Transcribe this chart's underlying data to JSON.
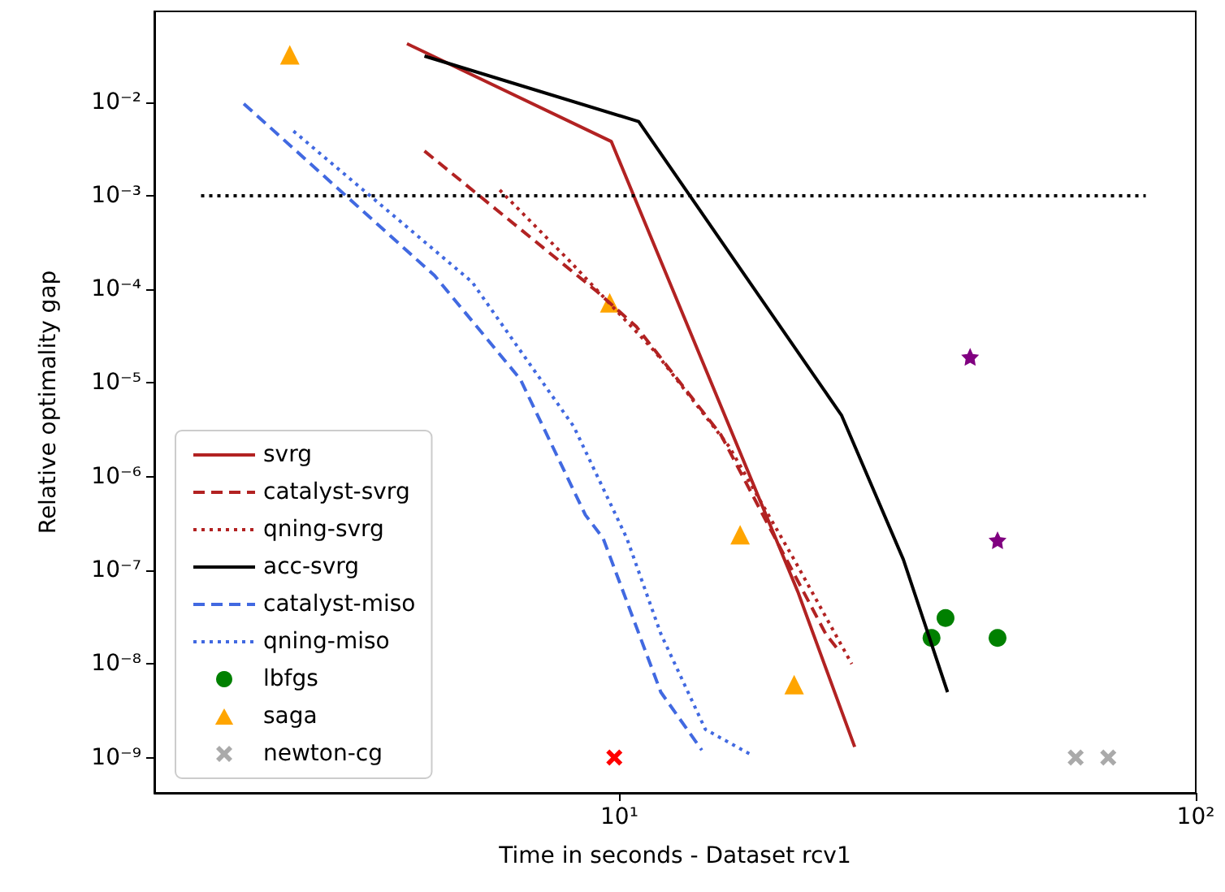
{
  "chart_data": {
    "type": "line",
    "xlabel": "Time in seconds - Dataset rcv1",
    "ylabel": "Relative optimality gap",
    "log": "xy",
    "grid": false,
    "legend": "bottom left",
    "xlim": [
      1.56,
      100
    ],
    "xticks": [
      {
        "value": 10,
        "label": "10¹"
      },
      {
        "value": 100,
        "label": "10²"
      }
    ],
    "ylim": [
      4.2e-10,
      0.093
    ],
    "yticks": [
      {
        "value": 1e-09,
        "label": "10⁻⁹"
      },
      {
        "value": 1e-08,
        "label": "10⁻⁸"
      },
      {
        "value": 1e-07,
        "label": "10⁻⁷"
      },
      {
        "value": 1e-06,
        "label": "10⁻⁶"
      },
      {
        "value": 1e-05,
        "label": "10⁻⁵"
      },
      {
        "value": 0.0001,
        "label": "10⁻⁴"
      },
      {
        "value": 0.001,
        "label": "10⁻³"
      },
      {
        "value": 0.01,
        "label": "10⁻²"
      }
    ],
    "series": [
      {
        "name": "svrg",
        "color": "#b22222",
        "line_style": "solid",
        "x": [
          4.28,
          9.68,
          20.4,
          25.6
        ],
        "values": [
          0.042,
          0.0038,
          5.9e-08,
          1.3e-09
        ]
      },
      {
        "name": "catalyst-svrg",
        "color": "#b22222",
        "line_style": "dashed",
        "x": [
          4.59,
          9.14,
          10.7,
          15.0,
          18.0,
          22.8,
          24.0
        ],
        "values": [
          0.003,
          9.5e-05,
          4e-05,
          2.8e-06,
          3.3e-07,
          2.1e-08,
          1.4e-08
        ]
      },
      {
        "name": "qning-svrg",
        "color": "#b22222",
        "line_style": "dotted",
        "x": [
          6.2,
          8.2,
          11.5,
          15.5,
          20.1,
          25.3
        ],
        "values": [
          0.00115,
          0.0002,
          2.2e-05,
          2.1e-06,
          1.3e-07,
          1e-08
        ]
      },
      {
        "name": "acc-svrg",
        "color": "#000000",
        "line_style": "solid",
        "x": [
          4.59,
          10.8,
          24.3,
          31.1,
          37.1
        ],
        "values": [
          0.031,
          0.0062,
          4.5e-06,
          1.3e-07,
          5e-09
        ]
      },
      {
        "name": "catalyst-miso",
        "color": "#4169e1",
        "line_style": "dashed",
        "x": [
          2.23,
          4.78,
          6.73,
          8.73,
          9.37,
          11.8,
          13.9
        ],
        "values": [
          0.0096,
          0.00014,
          1.1e-05,
          3.9e-07,
          2.2e-07,
          5e-09,
          1.2e-09
        ]
      },
      {
        "name": "qning-miso",
        "color": "#4169e1",
        "line_style": "dotted",
        "x": [
          2.72,
          5.55,
          8.34,
          10.3,
          11.8,
          14.1,
          16.8
        ],
        "values": [
          0.0049,
          0.00012,
          3.4e-06,
          2.2e-07,
          2.1e-08,
          2e-09,
          1.1e-09
        ]
      },
      {
        "name": "lbfgs",
        "type": "scatter",
        "color": "#008000",
        "marker": "circle",
        "x": [
          34.8,
          36.8,
          45.3
        ],
        "values": [
          1.9e-08,
          3.1e-08,
          1.9e-08
        ]
      },
      {
        "type": "scatter",
        "color": "#800080",
        "marker": "star",
        "x": [
          40.6,
          45.3
        ],
        "values": [
          1.9e-05,
          2.1e-07
        ]
      },
      {
        "name": "saga",
        "type": "scatter",
        "color": "#ffa500",
        "marker": "triangle",
        "x": [
          2.68,
          9.62,
          16.2,
          20.1
        ],
        "values": [
          0.032,
          7.2e-05,
          2.4e-07,
          6e-09
        ]
      },
      {
        "name": "newton-cg",
        "type": "scatter",
        "color": "#aaaaaa",
        "marker": "cross",
        "x": [
          61.9,
          70.5
        ],
        "values": [
          1e-09,
          1e-09
        ]
      },
      {
        "type": "scatter",
        "color": "#ff0000",
        "marker": "cross",
        "x": [
          9.8
        ],
        "values": [
          1e-09
        ]
      },
      {
        "color": "#000000",
        "line_style": "dotted",
        "x": [
          1.88,
          81.9
        ],
        "values": [
          0.001,
          0.001
        ]
      }
    ]
  }
}
